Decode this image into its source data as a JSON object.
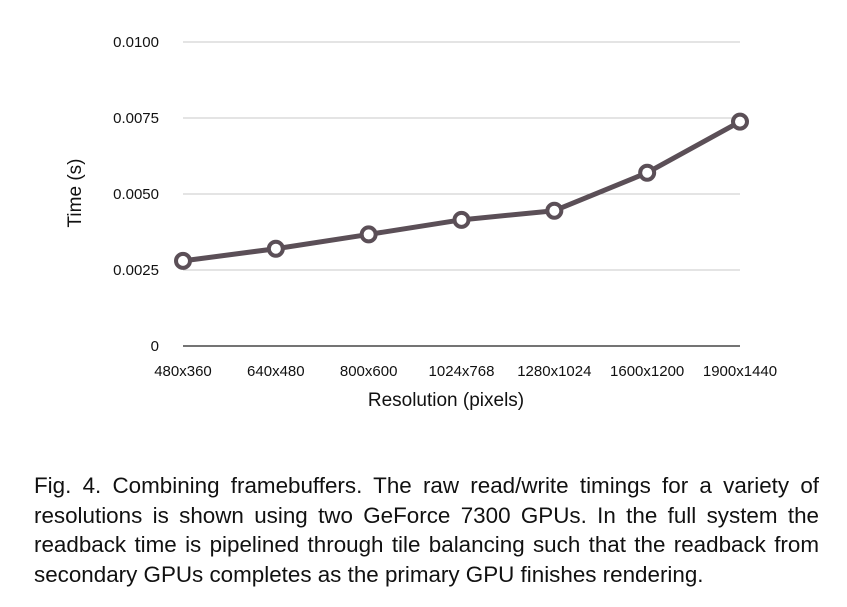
{
  "chart_data": {
    "type": "line",
    "categories": [
      "480x360",
      "640x480",
      "800x600",
      "1024x768",
      "1280x1024",
      "1600x1200",
      "1900x1440"
    ],
    "series": [
      {
        "values": [
          0.0028,
          0.0032,
          0.00367,
          0.00415,
          0.00445,
          0.0057,
          0.00738
        ]
      }
    ],
    "ylim": [
      0,
      0.01
    ],
    "y_ticks": [
      "0",
      "0.0025",
      "0.0050",
      "0.0075",
      "0.0100"
    ],
    "y_tick_values": [
      0,
      0.0025,
      0.005,
      0.0075,
      0.01
    ],
    "xlabel": "Resolution (pixels)",
    "ylabel": "Time (s)",
    "grid": true,
    "line_color": "#5b4f57"
  },
  "caption": "Fig. 4. Combining framebuffers. The raw read/write timings for a variety of resolutions is shown using two GeForce 7300 GPUs. In the full system the readback time is pipelined through tile balancing such that the readback from secondary GPUs completes as the primary GPU finishes rendering."
}
